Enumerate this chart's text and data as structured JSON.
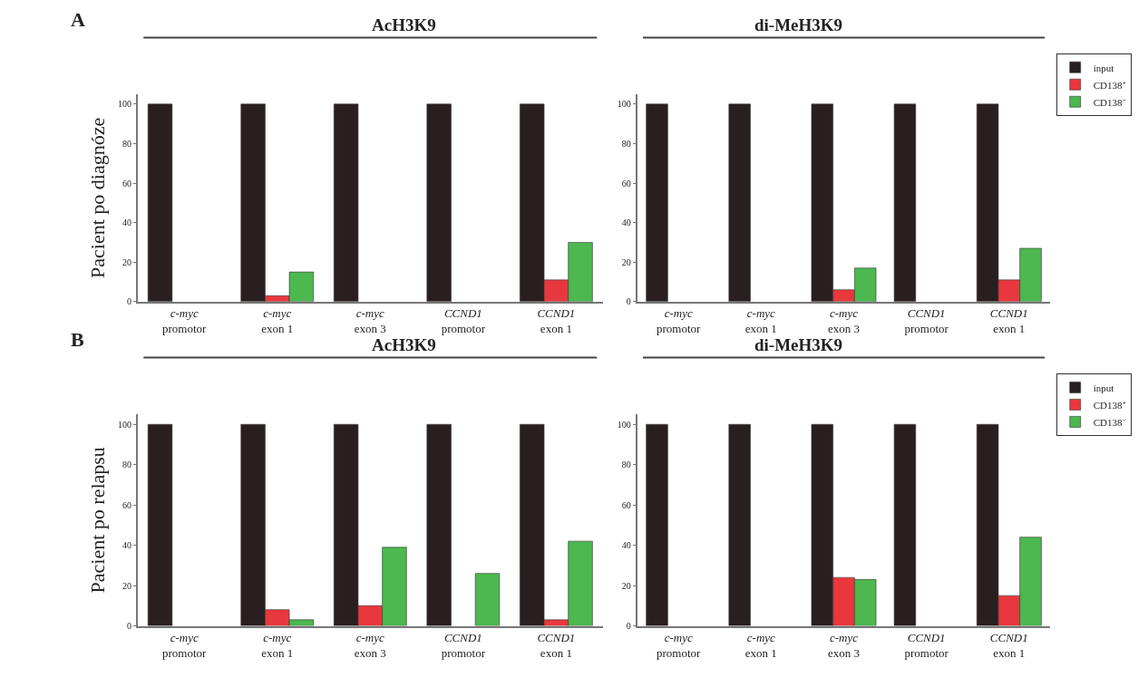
{
  "chart_data": [
    {
      "type": "bar",
      "title": "AcH3K9",
      "ylabel": "Pacient po diagnóze",
      "annotations": [
        "A"
      ],
      "categories": [
        "c-myc\npromotor",
        "c-myc\nexon 1",
        "c-myc\nexon 3",
        "CCND1\npromotor",
        "CCND1\nexon 1"
      ],
      "ylim": [
        0,
        105
      ],
      "yticks": [
        0,
        20,
        40,
        60,
        80,
        100
      ],
      "grid": false,
      "series": [
        {
          "color": "#2a1f20",
          "values": [
            100,
            100,
            100,
            100,
            100
          ]
        },
        {
          "color": "#e8383d",
          "values": [
            null,
            3,
            null,
            null,
            11
          ]
        },
        {
          "color": "#4cb84f",
          "values": [
            null,
            15,
            null,
            null,
            30
          ]
        }
      ]
    },
    {
      "type": "bar",
      "title": "di-MeH3K9",
      "categories": [
        "c-myc\npromotor",
        "c-myc\nexon 1",
        "c-myc\nexon 3",
        "CCND1\npromotor",
        "CCND1\nexon 1"
      ],
      "ylim": [
        0,
        105
      ],
      "yticks": [
        0,
        20,
        40,
        60,
        80,
        100
      ],
      "grid": false,
      "legend": "top right",
      "series": [
        {
          "name": "input",
          "color": "#2a1f20",
          "values": [
            100,
            100,
            100,
            100,
            100
          ]
        },
        {
          "name": "CD138⁺",
          "color": "#e8383d",
          "values": [
            null,
            null,
            6,
            null,
            11
          ]
        },
        {
          "name": "CD138⁻",
          "color": "#4cb84f",
          "values": [
            null,
            null,
            17,
            null,
            27
          ]
        }
      ]
    },
    {
      "type": "bar",
      "title": "AcH3K9",
      "ylabel": "Pacient po relapsu",
      "annotations": [
        "B"
      ],
      "categories": [
        "c-myc\npromotor",
        "c-myc\nexon 1",
        "c-myc\nexon 3",
        "CCND1\npromotor",
        "CCND1\nexon 1"
      ],
      "ylim": [
        0,
        105
      ],
      "yticks": [
        0,
        20,
        40,
        60,
        80,
        100
      ],
      "grid": false,
      "series": [
        {
          "color": "#2a1f20",
          "values": [
            100,
            100,
            100,
            100,
            100
          ]
        },
        {
          "color": "#e8383d",
          "values": [
            null,
            8,
            10,
            null,
            3
          ]
        },
        {
          "color": "#4cb84f",
          "values": [
            null,
            3,
            39,
            26,
            42
          ]
        }
      ]
    },
    {
      "type": "bar",
      "title": "di-MeH3K9",
      "categories": [
        "c-myc\npromotor",
        "c-myc\nexon 1",
        "c-myc\nexon 3",
        "CCND1\npromotor",
        "CCND1\nexon 1"
      ],
      "ylim": [
        0,
        105
      ],
      "yticks": [
        0,
        20,
        40,
        60,
        80,
        100
      ],
      "grid": false,
      "legend": "top right",
      "series": [
        {
          "name": "input",
          "color": "#2a1f20",
          "values": [
            100,
            100,
            100,
            100,
            100
          ]
        },
        {
          "name": "CD138⁺",
          "color": "#e8383d",
          "values": [
            null,
            null,
            24,
            null,
            15
          ]
        },
        {
          "name": "CD138⁻",
          "color": "#4cb84f",
          "values": [
            null,
            null,
            23,
            null,
            44
          ]
        }
      ]
    }
  ]
}
